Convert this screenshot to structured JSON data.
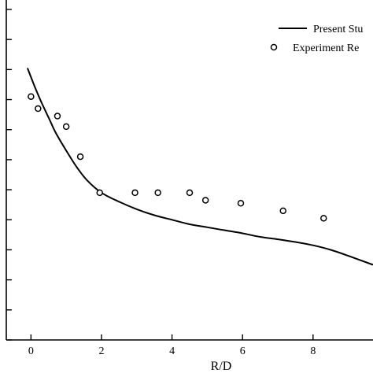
{
  "chart_data": {
    "type": "scatter",
    "title": "",
    "xlabel": "R/D",
    "ylabel": "",
    "xlim": [
      -0.7,
      9.7
    ],
    "ylim": [
      -0.1,
      1.0
    ],
    "x_ticks": [
      0,
      2,
      4,
      6,
      8
    ],
    "x_tick_labels": [
      "0",
      "2",
      "4",
      "6",
      "8"
    ],
    "y_ticks": [
      -0.1,
      0.0,
      0.1,
      0.2,
      0.3,
      0.4,
      0.5,
      0.6,
      0.7,
      0.8,
      0.9,
      1.0
    ],
    "grid": false,
    "legend_position": "top-right",
    "series": [
      {
        "name": "Present Stu",
        "kind": "line",
        "color": "#000000",
        "x": [
          -0.1,
          0.1,
          0.3,
          0.5,
          0.7,
          1.0,
          1.3,
          1.6,
          2.0,
          2.5,
          3.0,
          3.5,
          4.0,
          4.5,
          5.0,
          5.5,
          6.0,
          6.5,
          7.0,
          7.5,
          8.0,
          8.5,
          9.0,
          9.7
        ],
        "y": [
          0.805,
          0.745,
          0.69,
          0.64,
          0.59,
          0.53,
          0.475,
          0.43,
          0.39,
          0.36,
          0.335,
          0.315,
          0.3,
          0.285,
          0.275,
          0.265,
          0.255,
          0.243,
          0.235,
          0.226,
          0.215,
          0.2,
          0.18,
          0.15
        ]
      },
      {
        "name": "Experiment Re",
        "kind": "scatter",
        "marker": "open-circle",
        "color": "#000000",
        "x": [
          0.0,
          0.2,
          0.75,
          1.0,
          1.4,
          1.95,
          2.95,
          3.6,
          4.5,
          4.95,
          5.95,
          7.15,
          8.3
        ],
        "y": [
          0.71,
          0.67,
          0.645,
          0.61,
          0.51,
          0.39,
          0.39,
          0.39,
          0.39,
          0.365,
          0.355,
          0.33,
          0.305
        ]
      }
    ]
  }
}
